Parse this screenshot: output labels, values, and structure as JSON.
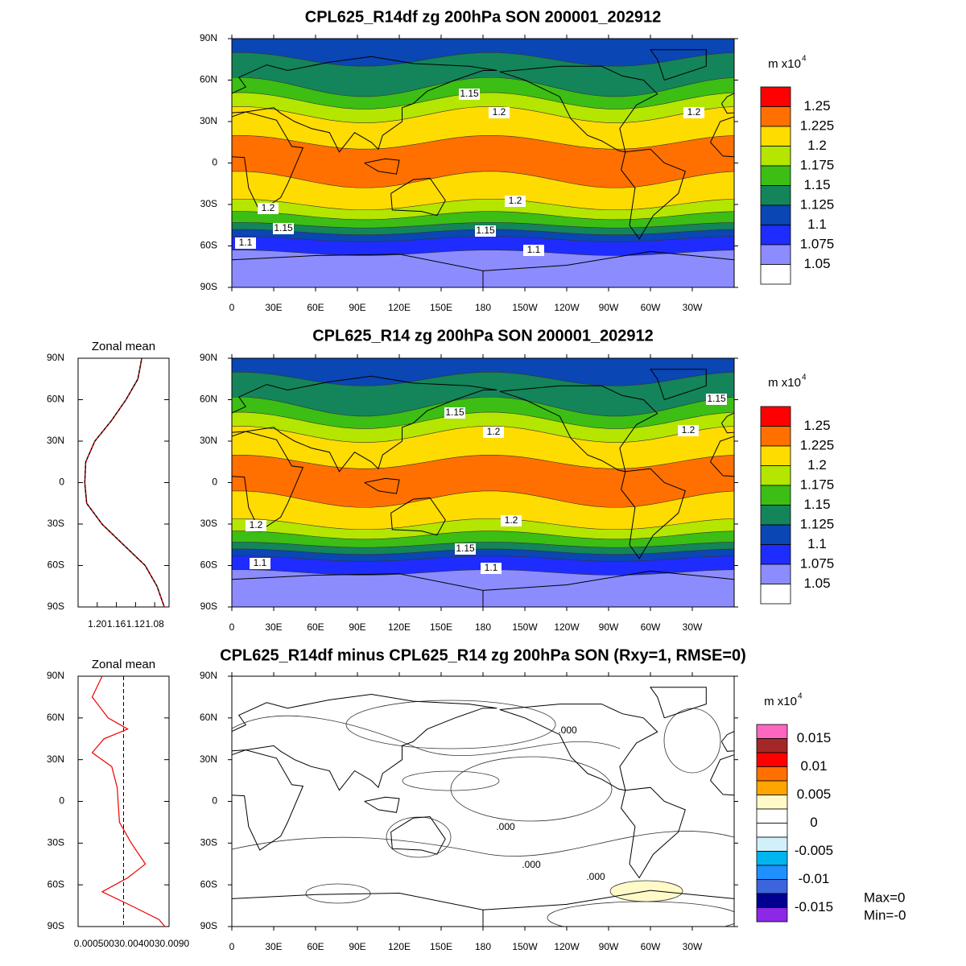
{
  "chart_data": [
    {
      "type": "contour-map",
      "title": "CPL625_R14df zg 200hPa SON 200001_202912",
      "xlim": [
        0,
        360
      ],
      "ylim": [
        -90,
        90
      ],
      "xticks": [
        0,
        {
          "value": 30,
          "label": "30E"
        },
        {
          "value": 60,
          "label": "60E"
        },
        {
          "value": 90,
          "label": "90E"
        },
        {
          "value": 120,
          "label": "120E"
        },
        {
          "value": 150,
          "label": "150E"
        },
        180,
        {
          "value": 210,
          "label": "150W"
        },
        {
          "value": 240,
          "label": "120W"
        },
        {
          "value": 270,
          "label": "90W"
        },
        {
          "value": 300,
          "label": "60W"
        },
        {
          "value": 330,
          "label": "30W"
        }
      ],
      "yticks": [
        {
          "value": 90,
          "label": "90N"
        },
        {
          "value": 60,
          "label": "60N"
        },
        {
          "value": 30,
          "label": "30N"
        },
        0,
        {
          "value": -30,
          "label": "30S"
        },
        {
          "value": -60,
          "label": "60S"
        },
        {
          "value": -90,
          "label": "90S"
        }
      ],
      "colorbar": {
        "title": "m x10",
        "title_sup": "4",
        "colors": [
          "#ff0000",
          "#ff7000",
          "#ffdc00",
          "#b4e600",
          "#3cbe14",
          "#14845a",
          "#0a46b4",
          "#1e2cff",
          "#8c8cff",
          "#ffffff"
        ],
        "levels": [
          1.25,
          1.225,
          1.2,
          1.175,
          1.15,
          1.125,
          1.1,
          1.075,
          1.05
        ]
      },
      "contour_labels": [
        "1.15",
        "1.2",
        "1.2",
        "1.2",
        "1.2",
        "1.15",
        "1.15",
        "1.1",
        "1.1"
      ]
    },
    {
      "type": "line",
      "title": "Zonal mean",
      "y": [
        -90,
        -75,
        -60,
        -45,
        -30,
        -15,
        0,
        15,
        30,
        45,
        60,
        75,
        90
      ],
      "values": [
        1.06,
        1.075,
        1.1,
        1.145,
        1.19,
        1.222,
        1.226,
        1.224,
        1.205,
        1.17,
        1.14,
        1.115,
        1.107
      ],
      "xlim": [
        1.24,
        1.05
      ],
      "ylim": [
        -90,
        90
      ],
      "xticks": [
        {
          "value": 1.2,
          "label": "1.20"
        },
        1.16,
        1.12,
        1.08
      ],
      "yticks": [
        {
          "value": 90,
          "label": "90N"
        },
        {
          "value": 60,
          "label": "60N"
        },
        {
          "value": 30,
          "label": "30N"
        },
        0,
        {
          "value": -30,
          "label": "30S"
        },
        {
          "value": -60,
          "label": "60S"
        },
        {
          "value": -90,
          "label": "90S"
        }
      ]
    },
    {
      "type": "contour-map",
      "title": "CPL625_R14 zg 200hPa SON 200001_202912",
      "xlim": [
        0,
        360
      ],
      "ylim": [
        -90,
        90
      ],
      "xticks": [
        0,
        {
          "value": 30,
          "label": "30E"
        },
        {
          "value": 60,
          "label": "60E"
        },
        {
          "value": 90,
          "label": "90E"
        },
        {
          "value": 120,
          "label": "120E"
        },
        {
          "value": 150,
          "label": "150E"
        },
        180,
        {
          "value": 210,
          "label": "150W"
        },
        {
          "value": 240,
          "label": "120W"
        },
        {
          "value": 270,
          "label": "90W"
        },
        {
          "value": 300,
          "label": "60W"
        },
        {
          "value": 330,
          "label": "30W"
        }
      ],
      "yticks": [
        {
          "value": 90,
          "label": "90N"
        },
        {
          "value": 60,
          "label": "60N"
        },
        {
          "value": 30,
          "label": "30N"
        },
        0,
        {
          "value": -30,
          "label": "30S"
        },
        {
          "value": -60,
          "label": "60S"
        },
        {
          "value": -90,
          "label": "90S"
        }
      ],
      "colorbar": {
        "title": "m x10",
        "title_sup": "4",
        "colors": [
          "#ff0000",
          "#ff7000",
          "#ffdc00",
          "#b4e600",
          "#3cbe14",
          "#14845a",
          "#0a46b4",
          "#1e2cff",
          "#8c8cff",
          "#ffffff"
        ],
        "levels": [
          1.25,
          1.225,
          1.2,
          1.175,
          1.15,
          1.125,
          1.1,
          1.075,
          1.05
        ]
      },
      "contour_labels": [
        "1.15",
        "1.2",
        "1.15",
        "1.2",
        "1.2",
        "1.2",
        "1.15",
        "1.1",
        "1.1"
      ]
    },
    {
      "type": "line",
      "title": "Zonal mean",
      "y": [
        -90,
        -85,
        -75,
        -65,
        -55,
        -45,
        -30,
        -15,
        0,
        10,
        25,
        35,
        45,
        52,
        60,
        75,
        90
      ],
      "values": [
        9.1e-05,
        7.8e-05,
        1.7e-05,
        -4.7e-05,
        9e-06,
        4.8e-05,
        1.7e-05,
        -9e-06,
        -1.2e-05,
        -1.4e-05,
        -2.6e-05,
        -6.9e-05,
        -4.3e-05,
        9e-06,
        -3.4e-05,
        -6.9e-05,
        -4.7e-05
      ],
      "xlim": [
        -0.0001,
        0.0001
      ],
      "ylim": [
        -90,
        90
      ],
      "xtick_text": "0.00050030.0040030.0090",
      "yticks": [
        {
          "value": 90,
          "label": "90N"
        },
        {
          "value": 60,
          "label": "60N"
        },
        {
          "value": 30,
          "label": "30N"
        },
        0,
        {
          "value": -30,
          "label": "30S"
        },
        {
          "value": -60,
          "label": "60S"
        },
        {
          "value": -90,
          "label": "90S"
        }
      ]
    },
    {
      "type": "contour-map",
      "title": "CPL625_R14df minus CPL625_R14 zg 200hPa SON (Rxy=1, RMSE=0)",
      "xlim": [
        0,
        360
      ],
      "ylim": [
        -90,
        90
      ],
      "xticks": [
        0,
        {
          "value": 30,
          "label": "30E"
        },
        {
          "value": 60,
          "label": "60E"
        },
        {
          "value": 90,
          "label": "90E"
        },
        {
          "value": 120,
          "label": "120E"
        },
        {
          "value": 150,
          "label": "150E"
        },
        180,
        {
          "value": 210,
          "label": "150W"
        },
        {
          "value": 240,
          "label": "120W"
        },
        {
          "value": 270,
          "label": "90W"
        },
        {
          "value": 300,
          "label": "60W"
        },
        {
          "value": 330,
          "label": "30W"
        }
      ],
      "yticks": [
        {
          "value": 90,
          "label": "90N"
        },
        {
          "value": 60,
          "label": "60N"
        },
        {
          "value": 30,
          "label": "30N"
        },
        0,
        {
          "value": -30,
          "label": "30S"
        },
        {
          "value": -60,
          "label": "60S"
        },
        {
          "value": -90,
          "label": "90S"
        }
      ],
      "colorbar": {
        "title": "m x10",
        "title_sup": "4",
        "colors": [
          "#ff66c0",
          "#a52828",
          "#ff0000",
          "#ff7000",
          "#ffa500",
          "#fffac8",
          "#ffffff",
          "#ffffff",
          "#d2f0fa",
          "#00b4f0",
          "#1e90ff",
          "#3c64dc",
          "#000090",
          "#8c28e6"
        ],
        "levels": [
          0.015,
          0.01,
          0.005,
          0,
          -0.005,
          -0.01,
          -0.015
        ]
      },
      "contour_labels": [
        ".000",
        ".000",
        ".000",
        ".000"
      ],
      "stats": [
        "Max=0",
        "Min=-0"
      ]
    }
  ]
}
